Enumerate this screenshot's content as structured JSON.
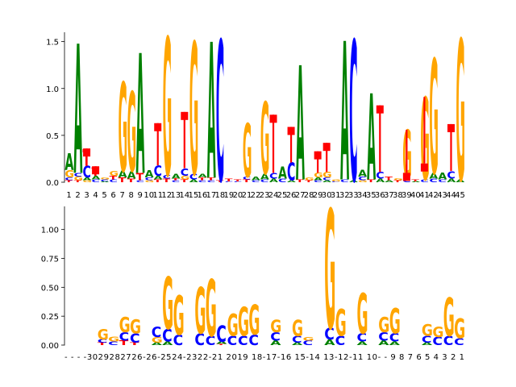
{
  "colors": {
    "A": "#008000",
    "C": "#0000ff",
    "G": "#ffa500",
    "T": "#ff0000",
    "axis": "#000000"
  },
  "chart_data": [
    {
      "type": "sequence-logo",
      "title": "",
      "xlabel": "",
      "ylabel": "",
      "ylim": [
        0,
        1.6
      ],
      "yticks": [
        0.0,
        0.5,
        1.0,
        1.5
      ],
      "ytick_labels": [
        "0.0",
        "0.5",
        "1.0",
        "1.5"
      ],
      "tick_labels": [
        "1",
        "2",
        "3",
        "4",
        "5",
        "6",
        "7",
        "8",
        "9",
        "10",
        "11",
        "12",
        "13",
        "14",
        "15",
        "16",
        "17",
        "18",
        "19",
        "20",
        "21",
        "22",
        "23",
        "24",
        "25",
        "26",
        "27",
        "28",
        "29",
        "30",
        "31",
        "32",
        "33",
        "34",
        "35",
        "36",
        "37",
        "38",
        "39",
        "40",
        "41",
        "42",
        "43",
        "44",
        "45"
      ],
      "positions": [
        {
          "stack": [
            [
              "T",
              0.02
            ],
            [
              "C",
              0.03
            ],
            [
              "G",
              0.08
            ],
            [
              "A",
              0.18
            ]
          ]
        },
        {
          "stack": [
            [
              "T",
              0.02
            ],
            [
              "G",
              0.04
            ],
            [
              "C",
              0.04
            ],
            [
              "A",
              1.38
            ]
          ]
        },
        {
          "stack": [
            [
              "G",
              0.02
            ],
            [
              "A",
              0.03
            ],
            [
              "C",
              0.12
            ],
            [
              "T",
              0.18
            ]
          ],
          "err": 0.36
        },
        {
          "stack": [
            [
              "C",
              0.03
            ],
            [
              "A",
              0.04
            ],
            [
              "T",
              0.09
            ]
          ],
          "err": 0.17
        },
        {
          "stack": [
            [
              "A",
              0.01
            ],
            [
              "C",
              0.02
            ],
            [
              "G",
              0.02
            ]
          ]
        },
        {
          "stack": [
            [
              "C",
              0.03
            ],
            [
              "T",
              0.04
            ],
            [
              "G",
              0.05
            ]
          ]
        },
        {
          "stack": [
            [
              "T",
              0.05
            ],
            [
              "A",
              0.07
            ],
            [
              "G",
              0.95
            ]
          ]
        },
        {
          "stack": [
            [
              "T",
              0.04
            ],
            [
              "A",
              0.08
            ],
            [
              "G",
              0.85
            ]
          ]
        },
        {
          "stack": [
            [
              "C",
              0.02
            ],
            [
              "T",
              0.08
            ],
            [
              "A",
              1.28
            ]
          ]
        },
        {
          "stack": [
            [
              "G",
              0.02
            ],
            [
              "C",
              0.03
            ],
            [
              "A",
              0.08
            ]
          ]
        },
        {
          "stack": [
            [
              "T",
              0.03
            ],
            [
              "A",
              0.04
            ],
            [
              "C",
              0.11
            ]
          ],
          "err": 0.63
        },
        {
          "stack": [
            [
              "T",
              0.04
            ],
            [
              "C",
              0.04
            ],
            [
              "G",
              1.47
            ]
          ]
        },
        {
          "stack": [
            [
              "C",
              0.02
            ],
            [
              "T",
              0.02
            ],
            [
              "A",
              0.05
            ]
          ]
        },
        {
          "stack": [
            [
              "T",
              0.03
            ],
            [
              "G",
              0.04
            ],
            [
              "C",
              0.08
            ]
          ],
          "err": 0.75
        },
        {
          "stack": [
            [
              "A",
              0.03
            ],
            [
              "C",
              0.06
            ],
            [
              "G",
              1.41
            ]
          ]
        },
        {
          "stack": [
            [
              "C",
              0.02
            ],
            [
              "T",
              0.03
            ],
            [
              "A",
              0.04
            ]
          ]
        },
        {
          "stack": [
            [
              "C",
              0.02
            ],
            [
              "T",
              0.03
            ],
            [
              "A",
              1.45
            ]
          ]
        },
        {
          "stack": [
            [
              "T",
              0.02
            ],
            [
              "C",
              1.5
            ]
          ]
        },
        {
          "stack": [
            [
              "C",
              0.01
            ],
            [
              "T",
              0.03
            ]
          ]
        },
        {
          "stack": [
            [
              "C",
              0.01
            ],
            [
              "T",
              0.02
            ]
          ]
        },
        {
          "stack": [
            [
              "T",
              0.03
            ],
            [
              "C",
              0.03
            ],
            [
              "G",
              0.57
            ]
          ]
        },
        {
          "stack": [
            [
              "C",
              0.02
            ],
            [
              "A",
              0.04
            ]
          ]
        },
        {
          "stack": [
            [
              "C",
              0.03
            ],
            [
              "A",
              0.06
            ],
            [
              "G",
              0.77
            ]
          ]
        },
        {
          "stack": [
            [
              "A",
              0.04
            ],
            [
              "C",
              0.06
            ]
          ],
          "err": 0.72
        },
        {
          "stack": [
            [
              "C",
              0.04
            ],
            [
              "A",
              0.13
            ]
          ]
        },
        {
          "stack": [
            [
              "A",
              0.02
            ],
            [
              "C",
              0.19
            ]
          ],
          "err": 0.59
        },
        {
          "stack": [
            [
              "T",
              0.03
            ],
            [
              "A",
              1.22
            ]
          ]
        },
        {
          "stack": [
            [
              "T",
              0.02
            ],
            [
              "G",
              0.03
            ]
          ]
        },
        {
          "stack": [
            [
              "C",
              0.02
            ],
            [
              "A",
              0.03
            ],
            [
              "G",
              0.05
            ]
          ],
          "err": 0.33
        },
        {
          "stack": [
            [
              "A",
              0.02
            ],
            [
              "C",
              0.03
            ],
            [
              "G",
              0.06
            ]
          ],
          "err": 0.42
        },
        {
          "stack": [
            [
              "C",
              0.01
            ],
            [
              "G",
              0.02
            ]
          ]
        },
        {
          "stack": [
            [
              "C",
              0.03
            ],
            [
              "A",
              1.48
            ]
          ]
        },
        {
          "stack": [
            [
              "A",
              0.02
            ],
            [
              "C",
              1.5
            ]
          ]
        },
        {
          "stack": [
            [
              "G",
              0.02
            ],
            [
              "C",
              0.04
            ],
            [
              "A",
              0.07
            ]
          ]
        },
        {
          "stack": [
            [
              "T",
              0.03
            ],
            [
              "A",
              0.92
            ]
          ]
        },
        {
          "stack": [
            [
              "A",
              0.04
            ],
            [
              "C",
              0.07
            ]
          ],
          "err": 0.82
        },
        {
          "stack": [
            [
              "A",
              0.02
            ],
            [
              "T",
              0.04
            ]
          ]
        },
        {
          "stack": [
            [
              "T",
              0.02
            ],
            [
              "G",
              0.02
            ]
          ]
        },
        {
          "stack": [
            [
              "C",
              0.04
            ],
            [
              "G",
              0.52
            ]
          ],
          "err": 0.1
        },
        {
          "stack": [
            [
              "A",
              0.01
            ],
            [
              "T",
              0.02
            ]
          ]
        },
        {
          "stack": [
            [
              "C",
              0.03
            ],
            [
              "G",
              0.88
            ]
          ],
          "err": 0.2
        },
        {
          "stack": [
            [
              "C",
              0.04
            ],
            [
              "A",
              0.06
            ],
            [
              "G",
              1.22
            ]
          ]
        },
        {
          "stack": [
            [
              "C",
              0.03
            ],
            [
              "A",
              0.07
            ]
          ]
        },
        {
          "stack": [
            [
              "A",
              0.04
            ],
            [
              "C",
              0.08
            ]
          ],
          "err": 0.62
        },
        {
          "stack": [
            [
              "A",
              0.03
            ],
            [
              "G",
              1.5
            ]
          ]
        }
      ]
    },
    {
      "type": "sequence-logo",
      "title": "",
      "xlabel": "",
      "ylabel": "",
      "ylim": [
        0,
        1.2
      ],
      "yticks": [
        0.0,
        0.25,
        0.5,
        0.75,
        1.0
      ],
      "ytick_labels": [
        "0.00",
        "0.25",
        "0.50",
        "0.75",
        "1.00"
      ],
      "tick_labels": [
        "-",
        "-",
        "-",
        "30",
        "29",
        "28",
        "27",
        "26",
        "-",
        "26",
        "25",
        "24",
        "23",
        "22",
        "21",
        "20",
        "19",
        "18",
        "17",
        "16",
        "15",
        "14",
        "13",
        "12",
        "11",
        "10",
        "-",
        "-",
        "9",
        "8",
        "7",
        "6",
        "5",
        "4",
        "3",
        "2",
        "1"
      ],
      "tick_text": "- - - -3029282726-26-2524-2322-21 2019 18-17-16 15-14 13-12-11 10- - 9 8 7 6 5 4 3 2 1",
      "positions": [
        {
          "stack": []
        },
        {
          "stack": []
        },
        {
          "stack": []
        },
        {
          "stack": [
            [
              "T",
              0.02
            ],
            [
              "C",
              0.03
            ],
            [
              "G",
              0.09
            ]
          ]
        },
        {
          "stack": [
            [
              "C",
              0.03
            ],
            [
              "G",
              0.04
            ]
          ]
        },
        {
          "stack": [
            [
              "T",
              0.04
            ],
            [
              "C",
              0.07
            ],
            [
              "G",
              0.13
            ]
          ]
        },
        {
          "stack": [
            [
              "T",
              0.02
            ],
            [
              "C",
              0.08
            ],
            [
              "G",
              0.12
            ]
          ]
        },
        {
          "stack": []
        },
        {
          "stack": [
            [
              "A",
              0.02
            ],
            [
              "G",
              0.05
            ],
            [
              "C",
              0.09
            ]
          ]
        },
        {
          "stack": [
            [
              "A",
              0.03
            ],
            [
              "C",
              0.11
            ],
            [
              "G",
              0.45
            ]
          ]
        },
        {
          "stack": [
            [
              "C",
              0.09
            ],
            [
              "G",
              0.34
            ]
          ]
        },
        {
          "stack": []
        },
        {
          "stack": [
            [
              "C",
              0.1
            ],
            [
              "G",
              0.4
            ]
          ]
        },
        {
          "stack": [
            [
              "C",
              0.08
            ],
            [
              "G",
              0.49
            ]
          ]
        },
        {
          "stack": [
            [
              "T",
              0.01
            ],
            [
              "A",
              0.02
            ],
            [
              "C",
              0.14
            ]
          ]
        },
        {
          "stack": [
            [
              "C",
              0.08
            ],
            [
              "G",
              0.19
            ]
          ]
        },
        {
          "stack": [
            [
              "C",
              0.08
            ],
            [
              "G",
              0.25
            ]
          ]
        },
        {
          "stack": [
            [
              "C",
              0.09
            ],
            [
              "G",
              0.26
            ]
          ]
        },
        {
          "stack": []
        },
        {
          "stack": [
            [
              "A",
              0.04
            ],
            [
              "C",
              0.07
            ],
            [
              "G",
              0.11
            ]
          ]
        },
        {
          "stack": []
        },
        {
          "stack": [
            [
              "A",
              0.02
            ],
            [
              "C",
              0.06
            ],
            [
              "G",
              0.14
            ]
          ]
        },
        {
          "stack": [
            [
              "C",
              0.04
            ],
            [
              "G",
              0.03
            ]
          ]
        },
        {
          "stack": []
        },
        {
          "stack": [
            [
              "A",
              0.05
            ],
            [
              "C",
              0.1
            ],
            [
              "G",
              1.03
            ]
          ]
        },
        {
          "stack": [
            [
              "C",
              0.08
            ],
            [
              "G",
              0.23
            ]
          ]
        },
        {
          "stack": []
        },
        {
          "stack": [
            [
              "A",
              0.03
            ],
            [
              "C",
              0.07
            ],
            [
              "G",
              0.35
            ]
          ]
        },
        {
          "stack": []
        },
        {
          "stack": [
            [
              "A",
              0.04
            ],
            [
              "C",
              0.07
            ],
            [
              "G",
              0.13
            ]
          ]
        },
        {
          "stack": [
            [
              "A",
              0.03
            ],
            [
              "C",
              0.07
            ],
            [
              "G",
              0.22
            ]
          ]
        },
        {
          "stack": []
        },
        {
          "stack": []
        },
        {
          "stack": [
            [
              "A",
              0.02
            ],
            [
              "C",
              0.06
            ],
            [
              "G",
              0.1
            ]
          ]
        },
        {
          "stack": [
            [
              "C",
              0.07
            ],
            [
              "G",
              0.09
            ]
          ]
        },
        {
          "stack": [
            [
              "C",
              0.08
            ],
            [
              "G",
              0.33
            ]
          ]
        },
        {
          "stack": [
            [
              "C",
              0.06
            ],
            [
              "G",
              0.17
            ]
          ]
        }
      ]
    }
  ]
}
